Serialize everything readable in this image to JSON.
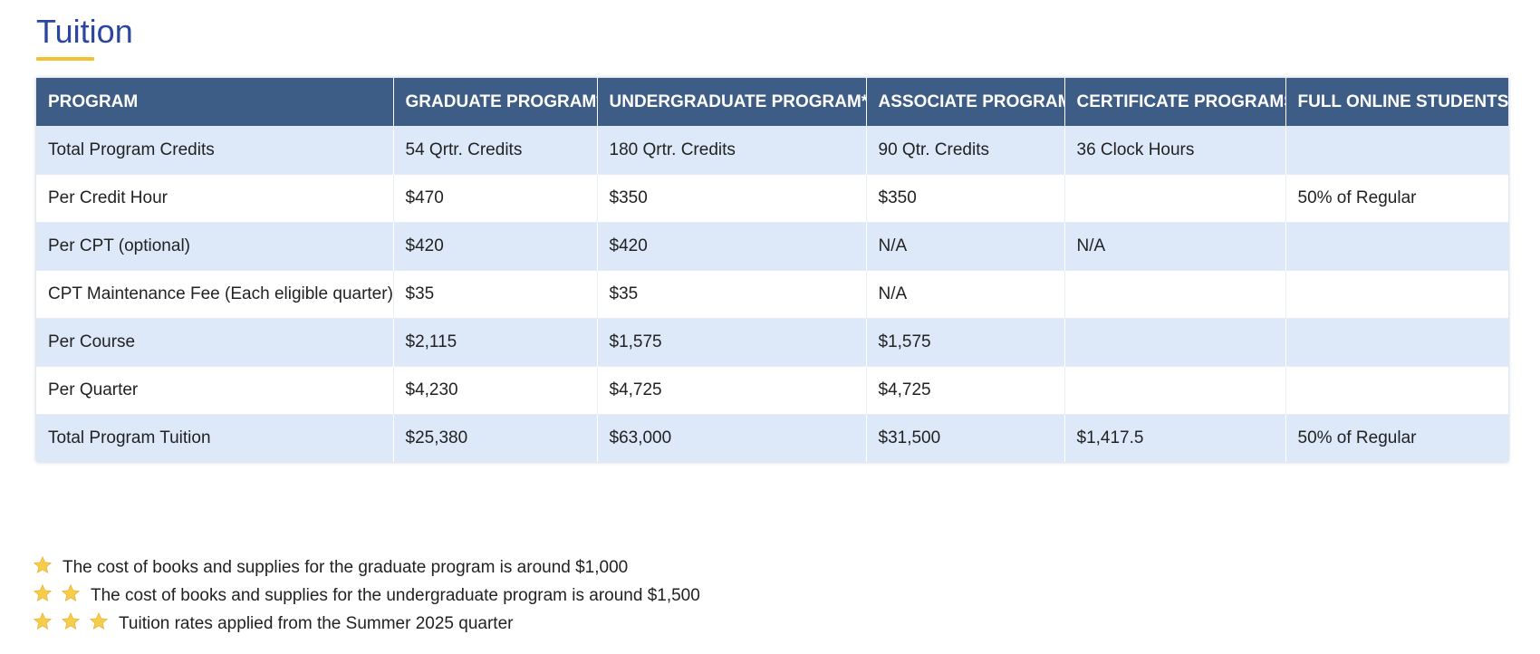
{
  "page": {
    "title": "Tuition"
  },
  "table": {
    "headers": [
      "PROGRAM",
      "GRADUATE PROGRAM*",
      "UNDERGRADUATE PROGRAM**",
      "ASSOCIATE PROGRAM",
      "CERTIFICATE PROGRAMS",
      "FULL ONLINE STUDENTS"
    ],
    "rows": [
      [
        "Total Program Credits",
        "54 Qrtr. Credits",
        "180 Qrtr. Credits",
        "90 Qtr. Credits",
        "36 Clock Hours",
        ""
      ],
      [
        "Per Credit Hour",
        "$470",
        "$350",
        "$350",
        "",
        "50% of Regular"
      ],
      [
        "Per CPT (optional)",
        "$420",
        "$420",
        "N/A",
        "N/A",
        ""
      ],
      [
        "CPT Maintenance Fee (Each eligible quarter)",
        "$35",
        "$35",
        "N/A",
        "",
        ""
      ],
      [
        "Per Course",
        "$2,115",
        "$1,575",
        "$1,575",
        "",
        ""
      ],
      [
        "Per Quarter",
        "$4,230",
        "$4,725",
        "$4,725",
        "",
        ""
      ],
      [
        "Total Program Tuition",
        "$25,380",
        "$63,000",
        "$31,500",
        "$1,417.5",
        "50% of Regular"
      ]
    ]
  },
  "notes": [
    {
      "stars": 1,
      "text": "The cost of books and supplies for the graduate program is around $1,000"
    },
    {
      "stars": 2,
      "text": "The cost of books and supplies for the undergraduate program is around $1,500"
    },
    {
      "stars": 3,
      "text": "Tuition rates applied from the Summer 2025 quarter"
    }
  ],
  "icons": {
    "note_marker": "star-icon"
  },
  "colors": {
    "title": "#2a46a0",
    "accent_underline": "#f3c233",
    "header_bg": "#3d5d87",
    "row_alt_bg": "#dde9f9",
    "star": "#f6cd4a"
  }
}
